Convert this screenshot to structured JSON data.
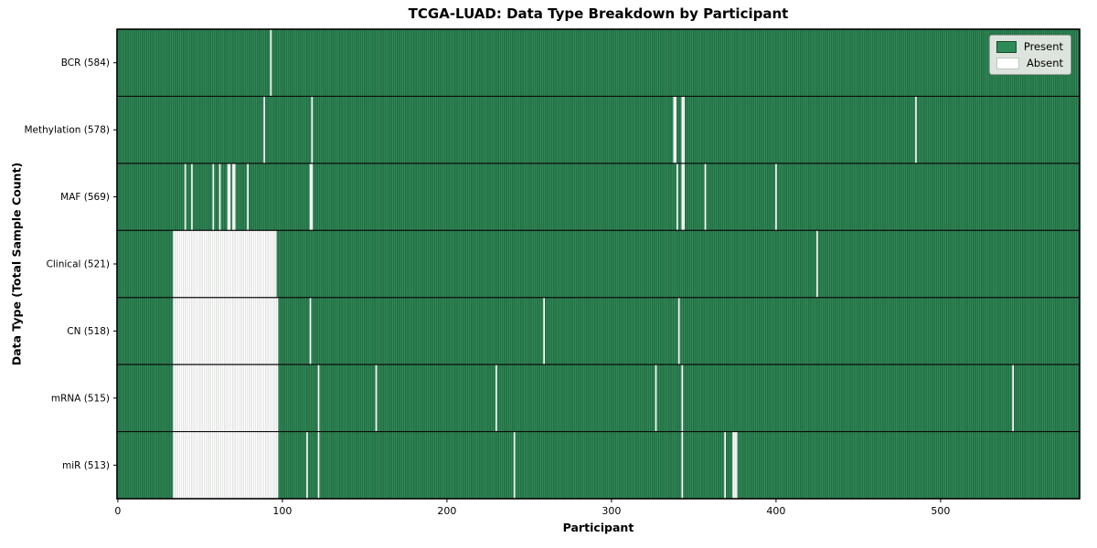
{
  "chart_data": {
    "type": "heatmap",
    "title": "TCGA-LUAD: Data Type Breakdown by Participant",
    "xlabel": "Participant",
    "ylabel": "Data Type (Total Sample Count)",
    "n_participants": 585,
    "x_ticks": [
      0,
      100,
      200,
      300,
      400,
      500
    ],
    "legend": {
      "position": "upper right",
      "items": [
        {
          "label": "Present",
          "color": "#2e8b57",
          "edge": "#1b4a2e"
        },
        {
          "label": "Absent",
          "color": "#ffffff",
          "edge": "#c2c6c2"
        }
      ]
    },
    "rows": [
      {
        "name": "BCR",
        "label": "BCR (584)",
        "present_count": 584,
        "absent_ranges": [
          [
            93,
            93
          ]
        ]
      },
      {
        "name": "Methylation",
        "label": "Methylation (578)",
        "present_count": 578,
        "absent_ranges": [
          [
            89,
            89
          ],
          [
            118,
            118
          ],
          [
            338,
            339
          ],
          [
            343,
            344
          ],
          [
            485,
            485
          ]
        ]
      },
      {
        "name": "MAF",
        "label": "MAF (569)",
        "present_count": 569,
        "absent_ranges": [
          [
            41,
            41
          ],
          [
            45,
            45
          ],
          [
            58,
            58
          ],
          [
            62,
            62
          ],
          [
            67,
            68
          ],
          [
            70,
            71
          ],
          [
            79,
            79
          ],
          [
            117,
            118
          ],
          [
            340,
            340
          ],
          [
            343,
            344
          ],
          [
            357,
            357
          ],
          [
            400,
            400
          ]
        ]
      },
      {
        "name": "Clinical",
        "label": "Clinical (521)",
        "present_count": 521,
        "absent_ranges": [
          [
            34,
            96
          ],
          [
            425,
            425
          ]
        ]
      },
      {
        "name": "CN",
        "label": "CN (518)",
        "present_count": 518,
        "absent_ranges": [
          [
            34,
            97
          ],
          [
            117,
            117
          ],
          [
            259,
            259
          ],
          [
            341,
            341
          ]
        ]
      },
      {
        "name": "mRNA",
        "label": "mRNA (515)",
        "present_count": 515,
        "absent_ranges": [
          [
            34,
            97
          ],
          [
            122,
            122
          ],
          [
            157,
            157
          ],
          [
            230,
            230
          ],
          [
            327,
            327
          ],
          [
            343,
            343
          ],
          [
            544,
            544
          ]
        ]
      },
      {
        "name": "miR",
        "label": "miR (513)",
        "present_count": 513,
        "absent_ranges": [
          [
            34,
            97
          ],
          [
            115,
            115
          ],
          [
            122,
            122
          ],
          [
            241,
            241
          ],
          [
            343,
            343
          ],
          [
            369,
            369
          ],
          [
            374,
            376
          ]
        ]
      }
    ],
    "colors": {
      "present_fill": "#2e8b57",
      "present_edge": "#1b4a2e",
      "absent_fill": "#ffffff",
      "absent_edge": "#c2c6c2",
      "row_divider": "#0d0d0d",
      "spine": "#000000",
      "tick": "#000000",
      "legend_bg": "#dde4dd",
      "legend_border": "#9aa09a"
    },
    "grid": false,
    "xlim": [
      0,
      585
    ],
    "states": {
      "present": "Present",
      "absent": "Absent"
    }
  }
}
